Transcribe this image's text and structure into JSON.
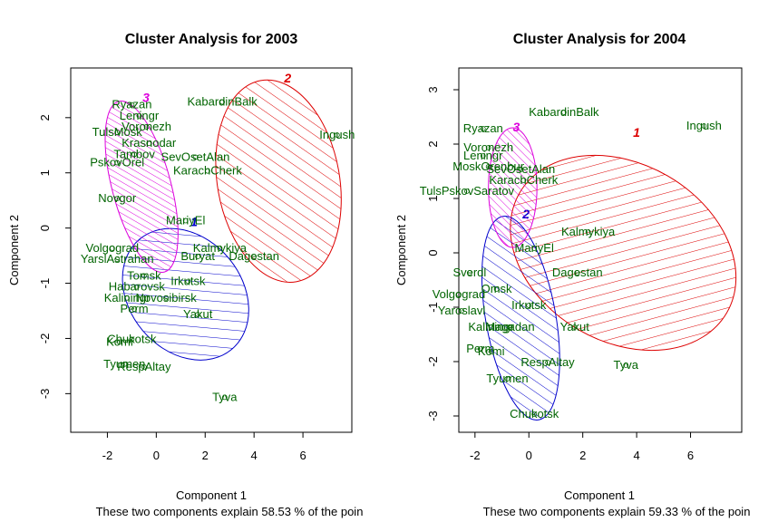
{
  "chart_data": [
    {
      "type": "scatter",
      "title": "Cluster Analysis for 2003",
      "xlabel": "Component 1",
      "ylabel": "Component 2",
      "subtitle": "These two components explain 58.53 % of the poin",
      "xlim": [
        -3.5,
        8.0
      ],
      "ylim": [
        -3.7,
        2.9
      ],
      "xticks": [
        -2,
        0,
        2,
        4,
        6
      ],
      "yticks": [
        -3,
        -2,
        -1,
        0,
        1,
        2
      ],
      "clusters": [
        {
          "id": "1",
          "color": "#0000cc",
          "cx": 1.2,
          "cy": -1.2,
          "rx": 2.3,
          "ry": 1.3,
          "angle": -40
        },
        {
          "id": "2",
          "color": "#dd0000",
          "cx": 5.0,
          "cy": 0.85,
          "rx": 2.5,
          "ry": 1.85,
          "angle": -10
        },
        {
          "id": "3",
          "color": "#dd00dd",
          "cx": -0.6,
          "cy": 0.75,
          "rx": 1.2,
          "ry": 1.6,
          "angle": -15
        }
      ],
      "labels": [
        {
          "text": "KabardinBalk",
          "x": 2.7,
          "y": 2.3
        },
        {
          "text": "Ingush",
          "x": 7.4,
          "y": 1.7
        },
        {
          "text": "SevOsetAlan",
          "x": 1.6,
          "y": 1.3
        },
        {
          "text": "KarachCherk",
          "x": 2.1,
          "y": 1.05
        },
        {
          "text": "Kalmykiya",
          "x": 2.6,
          "y": -0.35
        },
        {
          "text": "Dagestan",
          "x": 4.0,
          "y": -0.5
        },
        {
          "text": "Buryat",
          "x": 1.7,
          "y": -0.5
        },
        {
          "text": "MariyEl",
          "x": 1.2,
          "y": 0.15
        },
        {
          "text": "Ryazan",
          "x": -1.0,
          "y": 2.25
        },
        {
          "text": "Leningr",
          "x": -0.7,
          "y": 2.05
        },
        {
          "text": "Voronezh",
          "x": -0.4,
          "y": 1.85
        },
        {
          "text": "TulsMosk",
          "x": -1.6,
          "y": 1.75
        },
        {
          "text": "Krasnodar",
          "x": -0.3,
          "y": 1.55
        },
        {
          "text": "Tambov",
          "x": -0.9,
          "y": 1.35
        },
        {
          "text": "PskovOrel",
          "x": -1.6,
          "y": 1.2
        },
        {
          "text": "Novgor",
          "x": -1.6,
          "y": 0.55
        },
        {
          "text": "Volgograd",
          "x": -1.8,
          "y": -0.35
        },
        {
          "text": "YarslAstrahan",
          "x": -1.6,
          "y": -0.55
        },
        {
          "text": "Habarovsk",
          "x": -0.8,
          "y": -1.05
        },
        {
          "text": "Tomsk",
          "x": -0.5,
          "y": -0.85
        },
        {
          "text": "Kaliningr",
          "x": -1.2,
          "y": -1.25
        },
        {
          "text": "Perm",
          "x": -0.9,
          "y": -1.45
        },
        {
          "text": "Novosibirsk",
          "x": 0.4,
          "y": -1.25
        },
        {
          "text": "Irkutsk",
          "x": 1.3,
          "y": -0.95
        },
        {
          "text": "Yakut",
          "x": 1.7,
          "y": -1.55
        },
        {
          "text": "Komi",
          "x": -1.5,
          "y": -2.05
        },
        {
          "text": "Chukotsk",
          "x": -1.0,
          "y": -2.0
        },
        {
          "text": "Tyumen",
          "x": -1.3,
          "y": -2.45
        },
        {
          "text": "RespAltay",
          "x": -0.5,
          "y": -2.5
        },
        {
          "text": "Tyva",
          "x": 2.8,
          "y": -3.05
        }
      ]
    },
    {
      "type": "scatter",
      "title": "Cluster Analysis for 2004",
      "xlabel": "Component 1",
      "ylabel": "Component 2",
      "subtitle": "These two components explain 59.33 % of the poin",
      "xlim": [
        -2.6,
        7.9
      ],
      "ylim": [
        -3.3,
        3.4
      ],
      "xticks": [
        -2,
        0,
        2,
        4,
        6
      ],
      "yticks": [
        -3,
        -2,
        -1,
        0,
        1,
        2,
        3
      ],
      "clusters": [
        {
          "id": "1",
          "color": "#dd0000",
          "cx": 3.5,
          "cy": 0.0,
          "rx": 3.3,
          "ry": 2.2,
          "angle": -60
        },
        {
          "id": "2",
          "color": "#0000cc",
          "cx": -0.3,
          "cy": -1.2,
          "rx": 1.3,
          "ry": 1.9,
          "angle": -10
        },
        {
          "id": "3",
          "color": "#dd00dd",
          "cx": -0.6,
          "cy": 1.2,
          "rx": 0.9,
          "ry": 1.1,
          "angle": 0
        }
      ],
      "labels": [
        {
          "text": "KabardinBalk",
          "x": 1.3,
          "y": 2.6
        },
        {
          "text": "Ingush",
          "x": 6.5,
          "y": 2.35
        },
        {
          "text": "Ryazan",
          "x": -1.7,
          "y": 2.3
        },
        {
          "text": "Voronezh",
          "x": -1.5,
          "y": 1.95
        },
        {
          "text": "Leningr",
          "x": -1.7,
          "y": 1.8
        },
        {
          "text": "MoskOrenbur",
          "x": -1.5,
          "y": 1.6
        },
        {
          "text": "SevOsetAlan",
          "x": -0.3,
          "y": 1.55
        },
        {
          "text": "KarachCherk",
          "x": -0.2,
          "y": 1.35
        },
        {
          "text": "TulsPskovSaratov",
          "x": -2.3,
          "y": 1.15
        },
        {
          "text": "Kalmykiya",
          "x": 2.2,
          "y": 0.4
        },
        {
          "text": "MariyEl",
          "x": 0.2,
          "y": 0.1
        },
        {
          "text": "Dagestan",
          "x": 1.8,
          "y": -0.35
        },
        {
          "text": "Sverdl",
          "x": -2.2,
          "y": -0.35
        },
        {
          "text": "Volgograd",
          "x": -2.6,
          "y": -0.75
        },
        {
          "text": "Yaroslavl",
          "x": -2.5,
          "y": -1.05
        },
        {
          "text": "Omsk",
          "x": -1.2,
          "y": -0.65
        },
        {
          "text": "Irkutsk",
          "x": 0.0,
          "y": -0.95
        },
        {
          "text": "Kaliningr",
          "x": -1.4,
          "y": -1.35
        },
        {
          "text": "Magadan",
          "x": -0.7,
          "y": -1.35
        },
        {
          "text": "Yakut",
          "x": 1.7,
          "y": -1.35
        },
        {
          "text": "Perm",
          "x": -1.8,
          "y": -1.75
        },
        {
          "text": "Komi",
          "x": -1.4,
          "y": -1.8
        },
        {
          "text": "RespAltay",
          "x": 0.7,
          "y": -2.0
        },
        {
          "text": "Tyva",
          "x": 3.6,
          "y": -2.05
        },
        {
          "text": "Tyumen",
          "x": -0.8,
          "y": -2.3
        },
        {
          "text": "Chukotsk",
          "x": 0.2,
          "y": -2.95
        }
      ]
    }
  ]
}
